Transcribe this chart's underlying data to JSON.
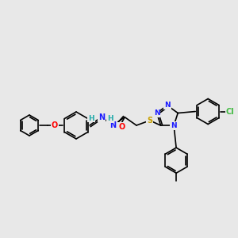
{
  "background_color": "#e8e8e8",
  "fig_width": 3.0,
  "fig_height": 3.0,
  "dpi": 100,
  "bond_color": "#000000",
  "bond_lw": 1.2,
  "font_size_atom": 7.0,
  "atom_colors": {
    "N": "#1a1aff",
    "O": "#ff0000",
    "S": "#c8a000",
    "Cl": "#44bb44",
    "H": "#22aaaa",
    "C": "#000000"
  }
}
